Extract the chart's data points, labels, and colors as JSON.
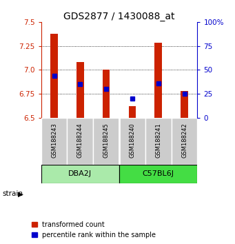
{
  "title": "GDS2877 / 1430088_at",
  "samples": [
    "GSM188243",
    "GSM188244",
    "GSM188245",
    "GSM188240",
    "GSM188241",
    "GSM188242"
  ],
  "group_labels": [
    "DBA2J",
    "C57BL6J"
  ],
  "group_colors": [
    "#aaeaaa",
    "#44dd44"
  ],
  "red_values": [
    7.38,
    7.08,
    7.0,
    6.62,
    7.28,
    6.78
  ],
  "blue_percentiles": [
    0.44,
    0.35,
    0.3,
    0.2,
    0.36,
    0.25
  ],
  "y_min": 6.5,
  "y_max": 7.5,
  "y_ticks": [
    6.5,
    6.75,
    7.0,
    7.25,
    7.5
  ],
  "right_y_ticks": [
    0,
    25,
    50,
    75,
    100
  ],
  "bar_color": "#cc2200",
  "dot_color": "#0000cc",
  "background_color": "#ffffff",
  "label_bg": "#cccccc",
  "title_fontsize": 10,
  "tick_fontsize": 7.5,
  "legend_fontsize": 7,
  "sample_fontsize": 6
}
